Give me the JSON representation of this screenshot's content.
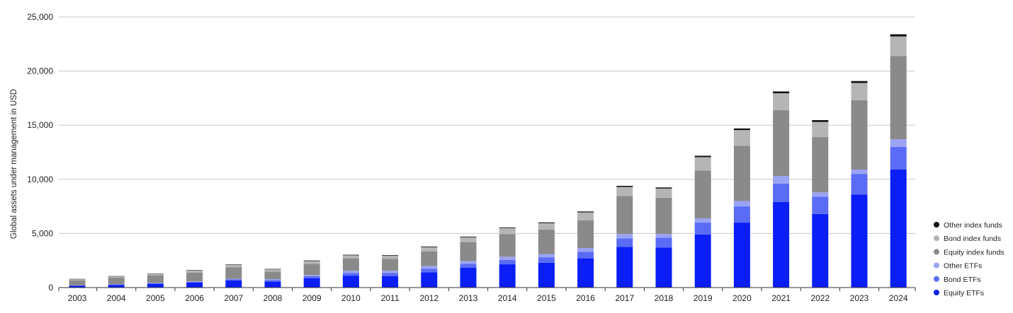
{
  "chart_data": {
    "type": "bar",
    "stacked": true,
    "ylabel": "Global assets under management in USD",
    "xlabel": "",
    "ylim": [
      0,
      25000
    ],
    "yticks": [
      0,
      5000,
      10000,
      15000,
      20000,
      25000
    ],
    "ytick_labels": [
      "0",
      "5,000",
      "10,000",
      "15,000",
      "20,000",
      "25,000"
    ],
    "grid": "horizontal",
    "legend_position": "bottom-right",
    "categories": [
      "2003",
      "2004",
      "2005",
      "2006",
      "2007",
      "2008",
      "2009",
      "2010",
      "2011",
      "2012",
      "2013",
      "2014",
      "2015",
      "2016",
      "2017",
      "2018",
      "2019",
      "2020",
      "2021",
      "2022",
      "2023",
      "2024"
    ],
    "series": [
      {
        "name": "Equity ETFs",
        "color": "#0a1ef5",
        "values": [
          170,
          250,
          350,
          470,
          650,
          550,
          850,
          1100,
          1050,
          1400,
          1850,
          2150,
          2300,
          2700,
          3750,
          3700,
          4900,
          6000,
          7900,
          6800,
          8600,
          10900
        ]
      },
      {
        "name": "Bond ETFs",
        "color": "#5a6cf5",
        "values": [
          30,
          40,
          50,
          60,
          100,
          150,
          200,
          250,
          300,
          350,
          350,
          400,
          500,
          600,
          800,
          900,
          1100,
          1500,
          1700,
          1600,
          1900,
          2100
        ]
      },
      {
        "name": "Other ETFs",
        "color": "#9aa3f5",
        "values": [
          10,
          20,
          30,
          40,
          60,
          80,
          100,
          200,
          200,
          250,
          250,
          300,
          300,
          350,
          400,
          350,
          400,
          500,
          700,
          400,
          400,
          700
        ]
      },
      {
        "name": "Equity index funds",
        "color": "#8a8a8a",
        "values": [
          450,
          600,
          700,
          800,
          1050,
          700,
          1050,
          1150,
          1100,
          1350,
          1750,
          2100,
          2250,
          2550,
          3500,
          3350,
          4400,
          5100,
          6100,
          5100,
          6400,
          7700
        ]
      },
      {
        "name": "Bond index funds",
        "color": "#b5b5b5",
        "values": [
          110,
          120,
          130,
          200,
          230,
          200,
          250,
          280,
          300,
          380,
          450,
          550,
          600,
          750,
          850,
          850,
          1250,
          1450,
          1550,
          1400,
          1600,
          1800
        ]
      },
      {
        "name": "Other index funds",
        "color": "#111111",
        "values": [
          30,
          30,
          30,
          40,
          40,
          40,
          50,
          50,
          50,
          60,
          60,
          60,
          70,
          80,
          100,
          100,
          130,
          150,
          170,
          170,
          180,
          200
        ]
      }
    ],
    "legend_order": [
      "Other index funds",
      "Bond index funds",
      "Equity index funds",
      "Other ETFs",
      "Bond ETFs",
      "Equity ETFs"
    ]
  }
}
